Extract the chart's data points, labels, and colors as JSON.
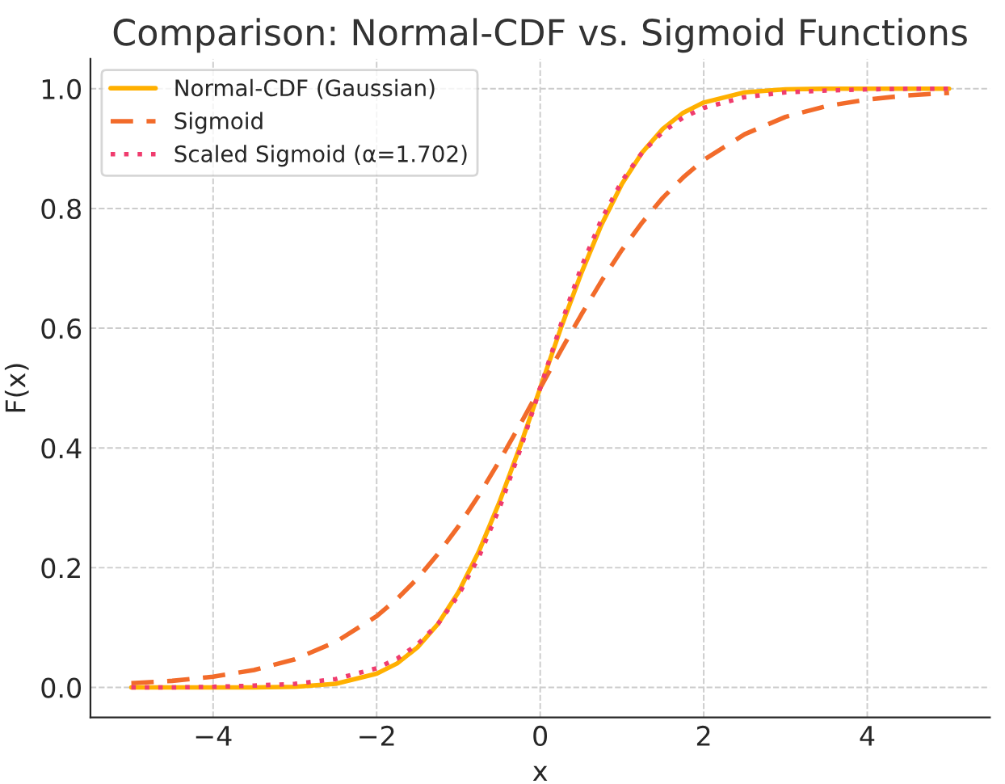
{
  "chart_data": {
    "type": "line",
    "title": "Comparison: Normal-CDF vs. Sigmoid Functions",
    "xlabel": "x",
    "ylabel": "F(x)",
    "x": [
      -5,
      -4.5,
      -4,
      -3.5,
      -3,
      -2.5,
      -2,
      -1.75,
      -1.5,
      -1.25,
      -1,
      -0.75,
      -0.5,
      -0.25,
      0,
      0.25,
      0.5,
      0.75,
      1,
      1.25,
      1.5,
      1.75,
      2,
      2.5,
      3,
      3.5,
      4,
      4.5,
      5
    ],
    "series": [
      {
        "name": "Normal-CDF (Gaussian)",
        "color": "#ffb000",
        "line_style": "solid",
        "values": [
          0,
          0,
          0,
          0,
          0.001,
          0.006,
          0.023,
          0.04,
          0.067,
          0.106,
          0.159,
          0.227,
          0.309,
          0.401,
          0.5,
          0.599,
          0.691,
          0.773,
          0.841,
          0.894,
          0.933,
          0.96,
          0.977,
          0.994,
          0.999,
          1,
          1,
          1,
          1
        ]
      },
      {
        "name": "Sigmoid",
        "color": "#f26b2a",
        "line_style": "dashed",
        "values": [
          0.007,
          0.011,
          0.018,
          0.029,
          0.047,
          0.076,
          0.119,
          0.148,
          0.182,
          0.223,
          0.269,
          0.321,
          0.378,
          0.438,
          0.5,
          0.562,
          0.622,
          0.679,
          0.731,
          0.777,
          0.818,
          0.852,
          0.881,
          0.924,
          0.953,
          0.971,
          0.982,
          0.989,
          0.993
        ]
      },
      {
        "name": "Scaled Sigmoid (α=1.702)",
        "color": "#f03c6e",
        "line_style": "dotted",
        "values": [
          0,
          0,
          0.001,
          0.003,
          0.006,
          0.014,
          0.032,
          0.048,
          0.072,
          0.106,
          0.154,
          0.218,
          0.299,
          0.395,
          0.5,
          0.605,
          0.701,
          0.782,
          0.846,
          0.894,
          0.928,
          0.952,
          0.968,
          0.986,
          0.994,
          0.997,
          0.999,
          1,
          1
        ]
      }
    ],
    "xlim": [
      -5.5,
      5.5
    ],
    "xticks": [
      {
        "value": -4,
        "label": "−4"
      },
      {
        "value": -2,
        "label": "−2"
      },
      0,
      2,
      4
    ],
    "ylim": [
      -0.05,
      1.05
    ],
    "yticks": [
      {
        "value": 0,
        "label": "0.0"
      },
      {
        "value": 0.2,
        "label": "0.2"
      },
      {
        "value": 0.4,
        "label": "0.4"
      },
      {
        "value": 0.6,
        "label": "0.6"
      },
      {
        "value": 0.8,
        "label": "0.8"
      },
      {
        "value": 1,
        "label": "1.0"
      }
    ],
    "grid": true,
    "legend": "top left"
  }
}
